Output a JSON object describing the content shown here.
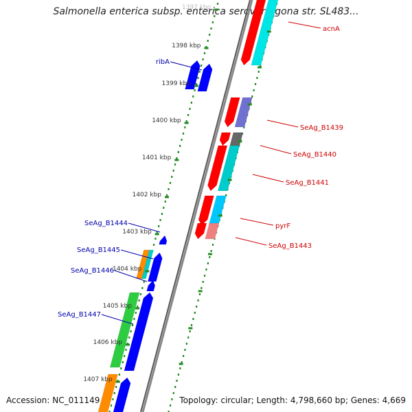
{
  "title": "Salmonella enterica subsp. enterica serovar Agona str. SL483...",
  "accession": "Accession: NC_011149",
  "summary": "Topology: circular; Length: 4,798,660 bp; Genes: 4,669",
  "colors": {
    "strand_plus": "#ff0000",
    "strand_minus": "#0000ff",
    "tick": "#228b22",
    "backbone": "#888888",
    "label_plus": "#cc0000",
    "label_minus": "#0000aa"
  },
  "scale": {
    "unit": "kbp",
    "ticks": [
      "1397 kbp",
      "1398 kbp",
      "1399 kbp",
      "1400 kbp",
      "1401 kbp",
      "1402 kbp",
      "1403 kbp",
      "1404 kbp",
      "1405 kbp",
      "1406 kbp",
      "1407 kbp"
    ]
  },
  "genes_plus": [
    {
      "name": "acnA",
      "feature_color": "#00e5e5"
    },
    {
      "name": "SeAg_B1439",
      "feature_color": "#7070d0"
    },
    {
      "name": "SeAg_B1440",
      "feature_color": "#666666"
    },
    {
      "name": "SeAg_B1441",
      "feature_color": "#00cccc"
    },
    {
      "name": "pyrF",
      "feature_color": "#00c8ff"
    },
    {
      "name": "SeAg_B1443",
      "feature_color": "#f08080"
    }
  ],
  "genes_minus": [
    {
      "name": "ribA"
    },
    {
      "name": "SeAg_B1444"
    },
    {
      "name": "SeAg_B1445",
      "feature_color": "#ff8c00"
    },
    {
      "name": "SeAg_B1446"
    },
    {
      "name": "SeAg_B1447",
      "feature_color": "#2ecc40"
    }
  ]
}
